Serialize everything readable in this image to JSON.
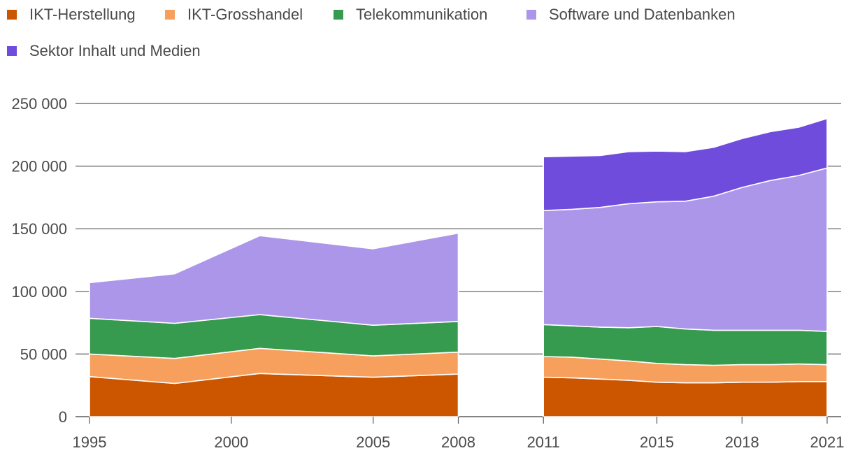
{
  "chart_data": {
    "type": "area",
    "stacked": true,
    "title": "",
    "xlabel": "",
    "ylabel": "",
    "ylim": [
      0,
      250000
    ],
    "y_ticks": [
      0,
      50000,
      100000,
      150000,
      200000,
      250000
    ],
    "y_tick_labels": [
      "0",
      "50 000",
      "100 000",
      "150 000",
      "200 000",
      "250 000"
    ],
    "x_ticks": [
      1995,
      2000,
      2005,
      2008,
      2011,
      2015,
      2018,
      2021
    ],
    "x_tick_labels": [
      "1995",
      "2000",
      "2005",
      "2008",
      "2011",
      "2015",
      "2018",
      "2021"
    ],
    "xlim": [
      1995,
      2021
    ],
    "legend_position": "top",
    "segments": [
      {
        "x": [
          1995,
          1998,
          2001,
          2005,
          2008
        ],
        "series": [
          {
            "name": "IKT-Herstellung",
            "values": [
              32000,
              26500,
              34500,
              31500,
              34000
            ]
          },
          {
            "name": "IKT-Grosshandel",
            "values": [
              18000,
              20000,
              20000,
              17000,
              17500
            ]
          },
          {
            "name": "Telekommunikation",
            "values": [
              28500,
              28000,
              27000,
              24500,
              24500
            ]
          },
          {
            "name": "Software und Datenbanken",
            "values": [
              28500,
              39500,
              63000,
              61000,
              70500
            ]
          }
        ]
      },
      {
        "x": [
          2011,
          2012,
          2013,
          2014,
          2015,
          2016,
          2017,
          2018,
          2019,
          2020,
          2021
        ],
        "series": [
          {
            "name": "IKT-Herstellung",
            "values": [
              31500,
              31000,
              30000,
              29000,
              27500,
              27000,
              27000,
              27500,
              27500,
              28000,
              28000
            ]
          },
          {
            "name": "IKT-Grosshandel",
            "values": [
              16500,
              16500,
              16000,
              15500,
              15000,
              14500,
              14000,
              14000,
              14000,
              14000,
              13500
            ]
          },
          {
            "name": "Telekommunikation",
            "values": [
              25500,
              25000,
              25500,
              26500,
              29500,
              28500,
              28000,
              27500,
              27500,
              27000,
              26500
            ]
          },
          {
            "name": "Software und Datenbanken",
            "values": [
              91000,
              93000,
              95500,
              99000,
              99500,
              102000,
              107000,
              114000,
              119500,
              123500,
              130500
            ]
          },
          {
            "name": "Sektor Inhalt und Medien",
            "values": [
              43000,
              42500,
              41500,
              41500,
              40500,
              39500,
              39000,
              39000,
              39000,
              38500,
              39500
            ]
          }
        ]
      }
    ],
    "legend": [
      {
        "name": "IKT-Herstellung",
        "color": "#cc5500"
      },
      {
        "name": "IKT-Grosshandel",
        "color": "#f7a05e"
      },
      {
        "name": "Telekommunikation",
        "color": "#369b4f"
      },
      {
        "name": "Software und Datenbanken",
        "color": "#ac96ea"
      },
      {
        "name": "Sektor Inhalt und Medien",
        "color": "#6f4cdc"
      }
    ]
  },
  "colors": {
    "grid": "#5a5a5a",
    "tick_text": "#4a4a4a",
    "series_border": "#ffffff"
  }
}
